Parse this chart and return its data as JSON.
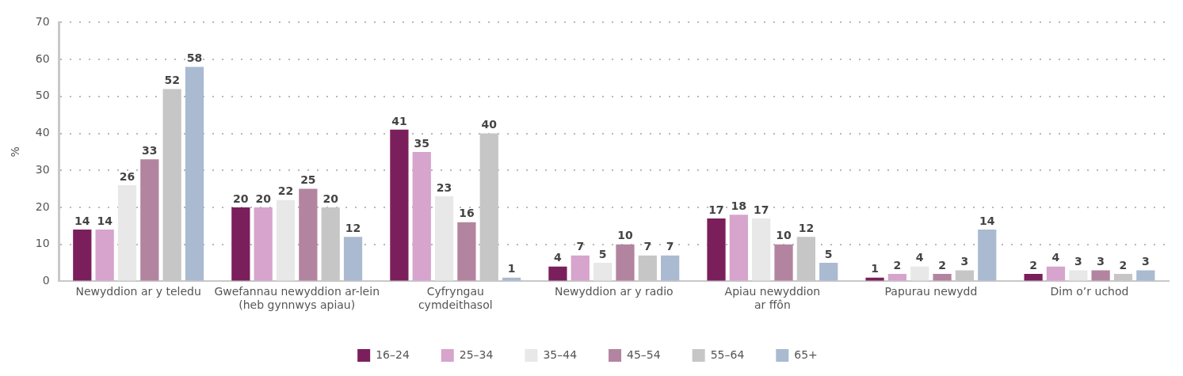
{
  "chart_data": {
    "type": "bar",
    "ylabel": "%",
    "categories": [
      "Newyddion ar y teledu",
      "Gwefannau newyddion ar-lein (heb gynnwys apiau)",
      "Cyfryngau cymdeithasol",
      "Newyddion ar y radio",
      "Apiau newyddion ar ffôn",
      "Papurau newydd",
      "Dim o’r uchod"
    ],
    "series": [
      {
        "name": "16–24",
        "color": "#7b1f5c",
        "values": [
          14,
          20,
          41,
          4,
          17,
          1,
          2
        ]
      },
      {
        "name": "25–34",
        "color": "#d6a4cc",
        "values": [
          14,
          20,
          35,
          7,
          18,
          2,
          4
        ]
      },
      {
        "name": "35–44",
        "color": "#e8e8e8",
        "values": [
          26,
          22,
          23,
          5,
          17,
          4,
          3
        ]
      },
      {
        "name": "45–54",
        "color": "#b3849f",
        "values": [
          33,
          25,
          16,
          10,
          10,
          2,
          3
        ]
      },
      {
        "name": "55–64",
        "color": "#c6c6c6",
        "values": [
          52,
          20,
          40,
          7,
          12,
          3,
          2
        ]
      },
      {
        "name": "65+",
        "color": "#a9bad1",
        "values": [
          58,
          12,
          1,
          7,
          5,
          14,
          3
        ]
      }
    ],
    "ylim": [
      0,
      70
    ],
    "yticks": [
      0,
      10,
      20,
      30,
      40,
      50,
      60,
      70
    ],
    "grid": "y",
    "legend": "bottom",
    "data_labels": true
  }
}
